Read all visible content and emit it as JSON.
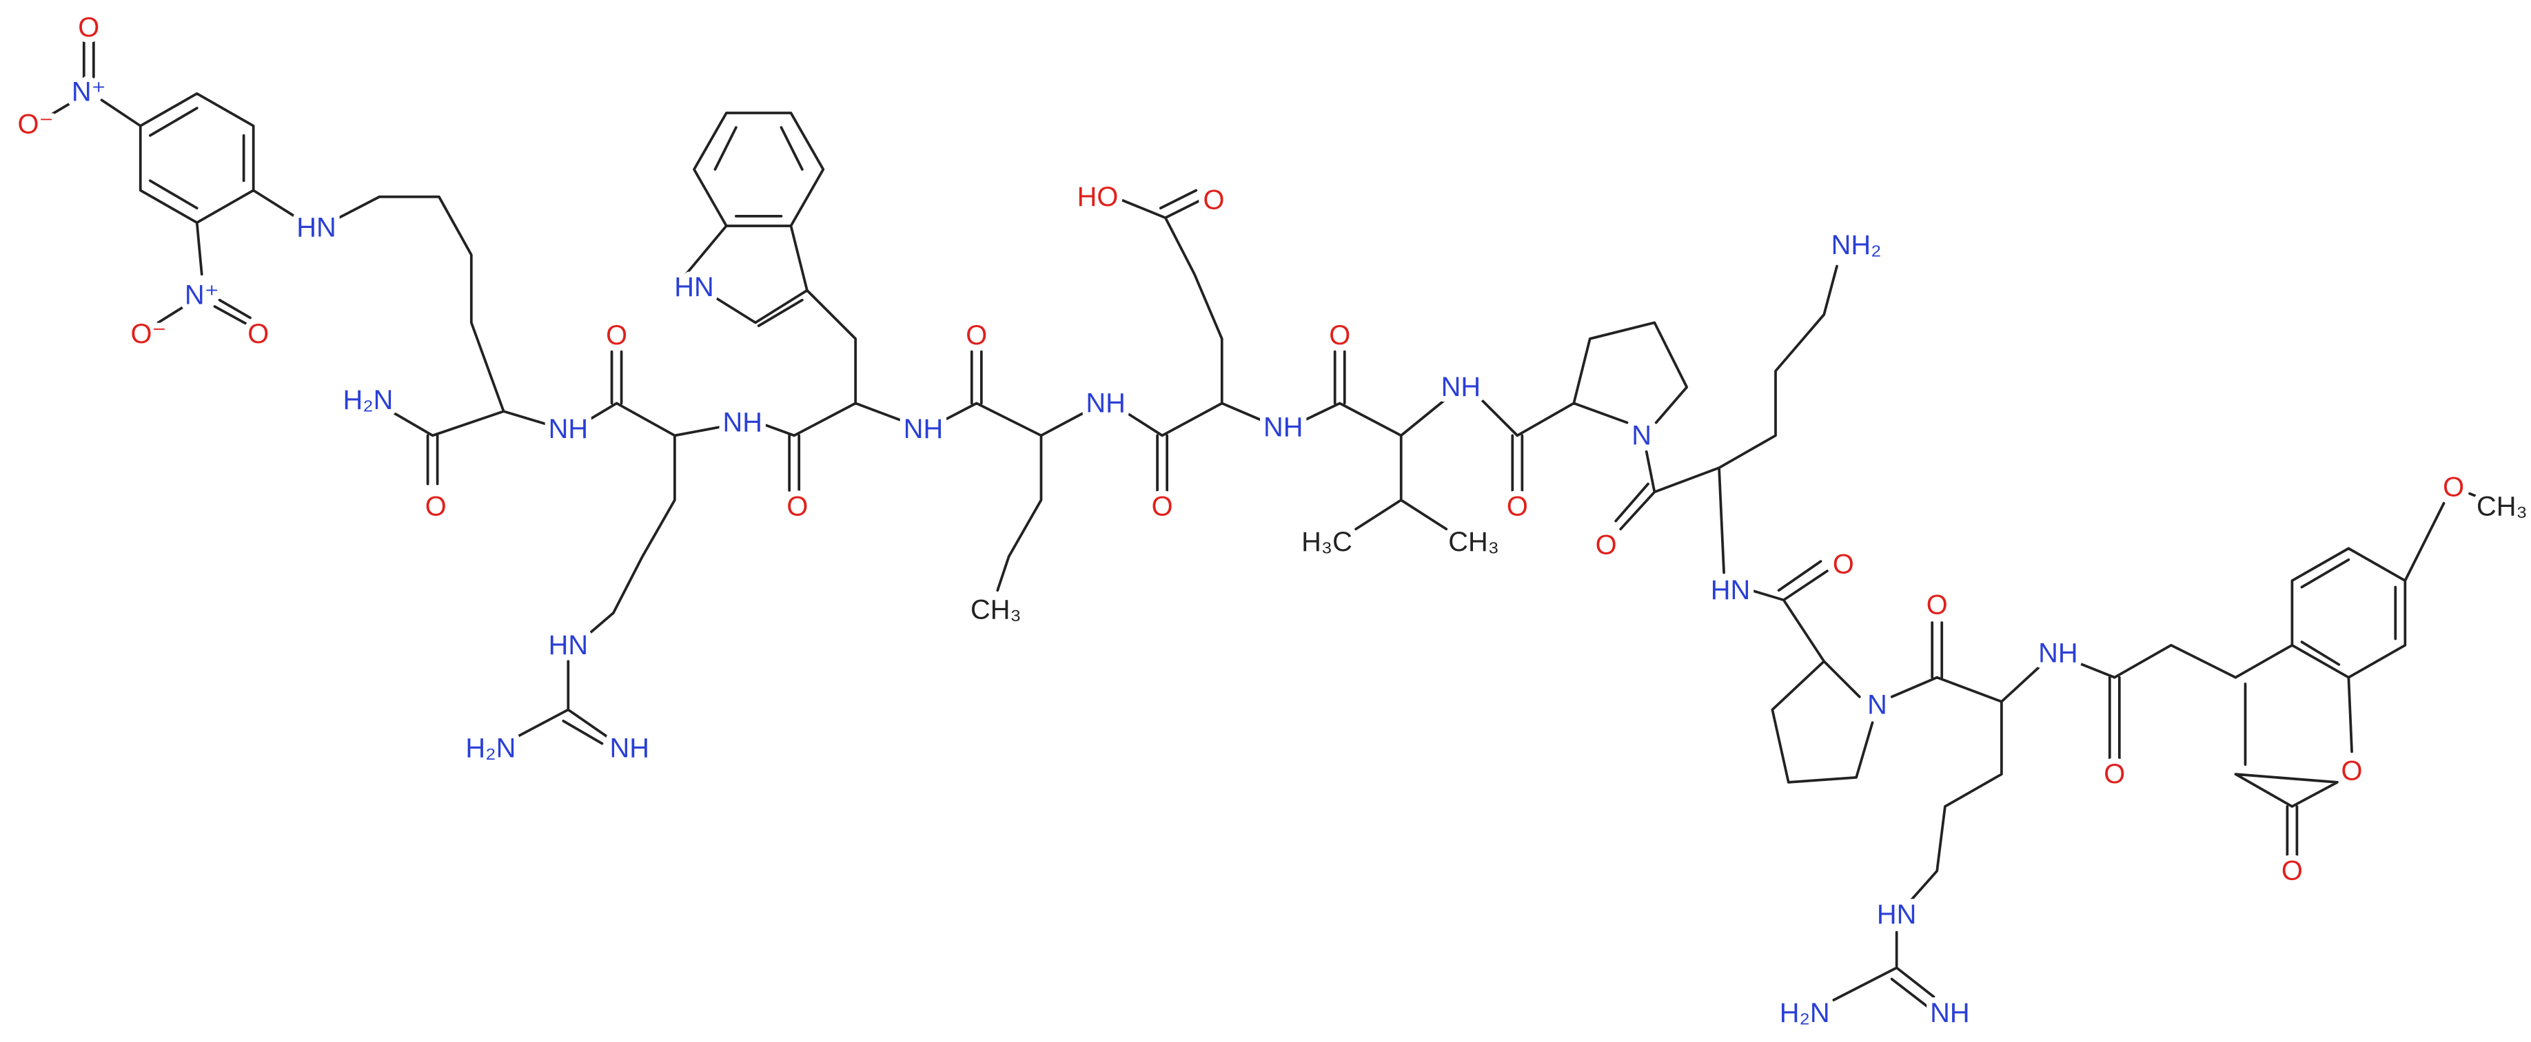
{
  "labels": [
    "O",
    "N⁺",
    "O⁻",
    "HN",
    "N⁺",
    "O⁻",
    "O",
    "H₂N",
    "O",
    "NH",
    "O",
    "NH",
    "HN",
    "O",
    "HN",
    "H₂N",
    "NH",
    "NH",
    "O",
    "CH₃",
    "NH",
    "O",
    "HO",
    "O",
    "NH",
    "O",
    "H₃C",
    "CH₃",
    "NH",
    "O",
    "N",
    "NH₂",
    "O",
    "HN",
    "O",
    "N",
    "O",
    "NH",
    "HN",
    "H₂N",
    "NH",
    "O",
    "O",
    "O",
    "O",
    "CH₃"
  ]
}
